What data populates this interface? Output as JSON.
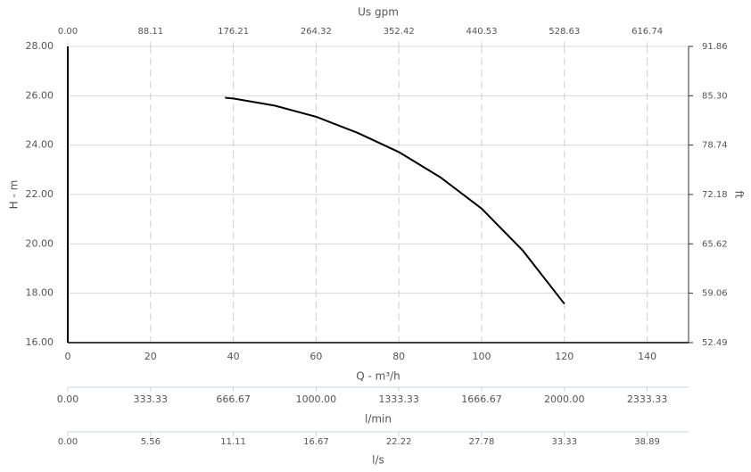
{
  "chart_data": {
    "type": "line",
    "x_label": "Q - m³/h",
    "y_label": "H - m",
    "x2_label": "Us gpm",
    "y2_label": "ft",
    "x": [
      38,
      40,
      50,
      60,
      70,
      80,
      90,
      100,
      110,
      120
    ],
    "series": [
      {
        "color": "#000000",
        "values": [
          25.92,
          25.89,
          25.6,
          25.15,
          24.5,
          23.72,
          22.7,
          21.43,
          19.72,
          17.57
        ]
      }
    ],
    "xlim": [
      0,
      150
    ],
    "xticks": [
      0,
      20,
      40,
      60,
      80,
      100,
      120,
      140
    ],
    "ylim": [
      16,
      28
    ],
    "yticks": [
      {
        "value": 16,
        "label": "16.00"
      },
      {
        "value": 18,
        "label": "18.00"
      },
      {
        "value": 20,
        "label": "20.00"
      },
      {
        "value": 22,
        "label": "22.00"
      },
      {
        "value": 24,
        "label": "24.00"
      },
      {
        "value": 26,
        "label": "26.00"
      },
      {
        "value": 28,
        "label": "28.00"
      }
    ],
    "x2lim": [
      0,
      660.8
    ],
    "x2ticks": [
      {
        "value": 0,
        "label": "0.00"
      },
      88.11,
      176.21,
      264.32,
      352.42,
      440.53,
      528.63,
      616.74
    ],
    "y2lim": [
      52.49,
      91.86
    ],
    "y2ticks": [
      52.49,
      59.06,
      65.62,
      72.18,
      78.74,
      {
        "value": 85.3,
        "label": "85.30"
      },
      91.86
    ],
    "extra_axes": [
      {
        "label": "l/min",
        "lim": [
          0,
          2500
        ],
        "ticks": [
          {
            "value": 0,
            "label": "0.00"
          },
          333.33,
          666.67,
          {
            "value": 1000,
            "label": "1000.00"
          },
          1333.33,
          1666.67,
          {
            "value": 2000,
            "label": "2000.00"
          },
          2333.33
        ]
      },
      {
        "label": "l/s",
        "lim": [
          0,
          41.67
        ],
        "ticks": [
          {
            "value": 0,
            "label": "0.00"
          },
          5.56,
          11.11,
          16.67,
          22.22,
          27.78,
          33.33,
          38.89
        ]
      }
    ],
    "grid": true
  }
}
